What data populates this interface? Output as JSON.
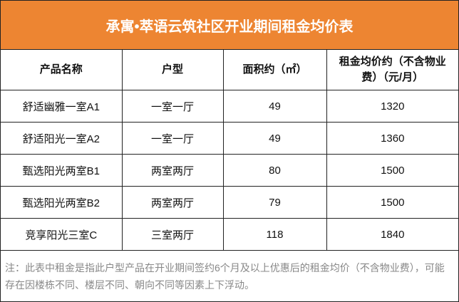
{
  "title": "承寓•萃语云筑社区开业期间租金均价表",
  "colors": {
    "header_bg": "#ED8532",
    "header_text": "#FFFFFF"
  },
  "columns": [
    "产品名称",
    "户型",
    "面积约（㎡）",
    "租金均价约（不含物业费）（元/月）"
  ],
  "rows": [
    [
      "舒适幽雅一室A1",
      "一室一厅",
      "49",
      "1320"
    ],
    [
      "舒适阳光一室A2",
      "一室一厅",
      "49",
      "1360"
    ],
    [
      "甄选阳光两室B1",
      "两室两厅",
      "80",
      "1500"
    ],
    [
      "甄选阳光两室B2",
      "两室两厅",
      "79",
      "1500"
    ],
    [
      "竞享阳光三室C",
      "三室两厅",
      "118",
      "1840"
    ]
  ],
  "note": "注：此表中租金是指此户型产品在开业期间签约6个月及以上优惠后的租金均价（不含物业费），可能存在因楼栋不同、楼层不同、朝向不同等因素上下浮动。"
}
